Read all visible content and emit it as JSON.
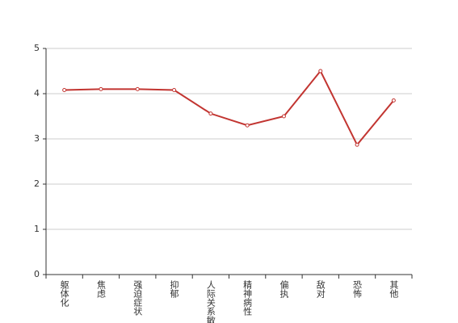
{
  "chart_data": {
    "type": "line",
    "categories": [
      "躯体化",
      "焦虑",
      "强迫症状",
      "抑郁",
      "人际关系敏感",
      "精神病性",
      "偏执",
      "敌对",
      "恐怖",
      "其他"
    ],
    "series": [
      {
        "color": "#c23531",
        "values": [
          4.08,
          4.1,
          4.1,
          4.08,
          3.56,
          3.3,
          3.5,
          4.5,
          2.87,
          3.85
        ]
      }
    ],
    "ylim": [
      0,
      5
    ],
    "yticks": [
      0,
      1,
      2,
      3,
      4,
      5
    ],
    "grid": true
  }
}
